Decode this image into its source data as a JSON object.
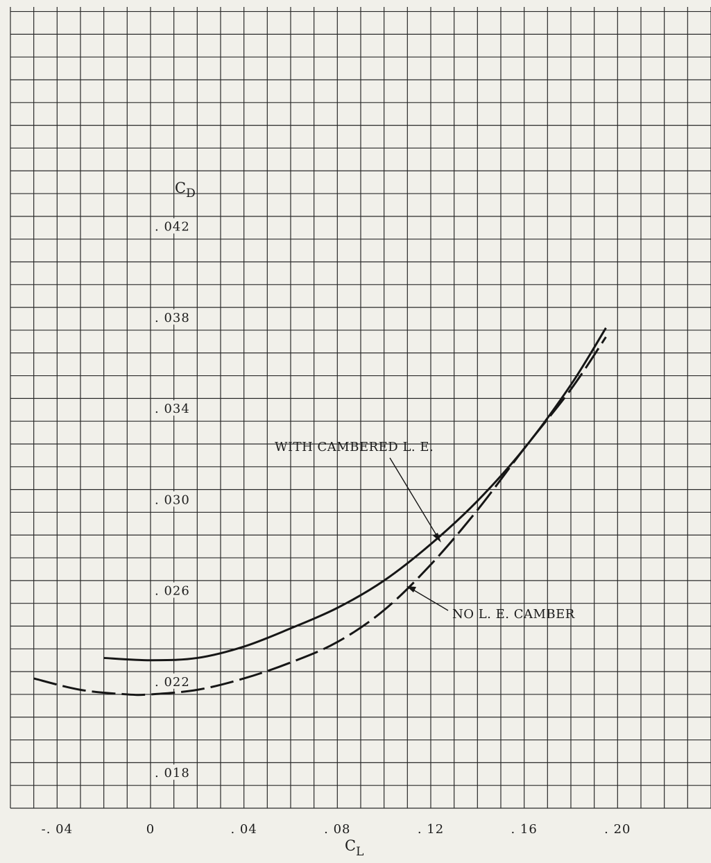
{
  "chart_data": {
    "type": "line",
    "title": "",
    "xlabel": "C",
    "xlabel_sub": "L",
    "ylabel": "C",
    "ylabel_sub": "D",
    "xlim": [
      -0.06,
      0.24
    ],
    "ylim": [
      0.0166,
      0.0518
    ],
    "grid": true,
    "x_ticks": [
      {
        "value": -0.04,
        "label": "-. 04"
      },
      {
        "value": 0.0,
        "label": "0"
      },
      {
        "value": 0.04,
        "label": ". 04"
      },
      {
        "value": 0.08,
        "label": ". 08"
      },
      {
        "value": 0.12,
        "label": ". 12"
      },
      {
        "value": 0.16,
        "label": ". 16"
      },
      {
        "value": 0.2,
        "label": ". 20"
      }
    ],
    "y_ticks": [
      {
        "value": 0.042,
        "label": ". 042"
      },
      {
        "value": 0.038,
        "label": ". 038"
      },
      {
        "value": 0.034,
        "label": ". 034"
      },
      {
        "value": 0.03,
        "label": ". 030"
      },
      {
        "value": 0.026,
        "label": ". 026"
      },
      {
        "value": 0.022,
        "label": ". 022"
      },
      {
        "value": 0.018,
        "label": ". 018"
      }
    ],
    "series": [
      {
        "name": "WITH CAMBERED L. E.",
        "style": "solid",
        "color": "#161616",
        "x": [
          -0.02,
          0.0,
          0.02,
          0.04,
          0.06,
          0.08,
          0.1,
          0.12,
          0.14,
          0.16,
          0.18,
          0.195
        ],
        "y": [
          0.0232,
          0.0231,
          0.0232,
          0.0237,
          0.0245,
          0.0254,
          0.0266,
          0.0282,
          0.0301,
          0.0324,
          0.0352,
          0.0377
        ]
      },
      {
        "name": "NO L. E. CAMBER",
        "style": "dashed",
        "color": "#161616",
        "x": [
          -0.05,
          -0.03,
          -0.01,
          0.0,
          0.02,
          0.04,
          0.06,
          0.08,
          0.1,
          0.12,
          0.14,
          0.16,
          0.18,
          0.195
        ],
        "y": [
          0.0223,
          0.0218,
          0.0216,
          0.0216,
          0.0218,
          0.0223,
          0.023,
          0.0239,
          0.0253,
          0.0273,
          0.0297,
          0.0324,
          0.035,
          0.0373
        ]
      }
    ],
    "annotations": [
      {
        "text": "WITH CAMBERED L. E.",
        "points_to_x": 0.128,
        "points_to_y": 0.0286
      },
      {
        "text": "NO L. E. CAMBER",
        "points_to_x": 0.113,
        "points_to_y": 0.0262
      }
    ]
  }
}
